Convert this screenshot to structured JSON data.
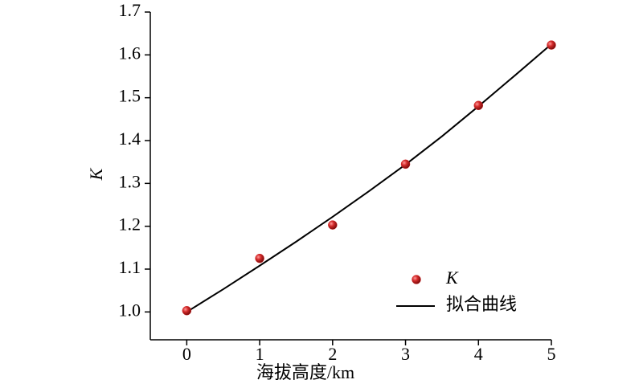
{
  "chart_data": {
    "type": "scatter",
    "x_label": "海拔高度/km",
    "y_label": "K",
    "xlim": [
      -0.5,
      5
    ],
    "ylim": [
      0.935,
      1.7
    ],
    "xticks": [
      0,
      1,
      2,
      3,
      4,
      5
    ],
    "yticks": [
      {
        "value": 1,
        "label": "1.0"
      },
      1.1,
      1.2,
      1.3,
      1.4,
      1.5,
      1.6,
      1.7
    ],
    "series": [
      {
        "name": "K",
        "type": "scatter",
        "color": "#d42a2a",
        "x": [
          0,
          1,
          2,
          3,
          4,
          5
        ],
        "values": [
          1.003,
          1.125,
          1.203,
          1.345,
          1.482,
          1.623
        ]
      },
      {
        "name": "拟合曲线",
        "type": "line",
        "color": "#000000",
        "x": [
          0,
          0.5,
          1,
          1.5,
          2,
          2.5,
          3,
          3.5,
          4,
          4.5,
          5
        ],
        "values": [
          1.0,
          1.053,
          1.108,
          1.164,
          1.222,
          1.282,
          1.344,
          1.41,
          1.48,
          1.552,
          1.625
        ]
      }
    ]
  }
}
